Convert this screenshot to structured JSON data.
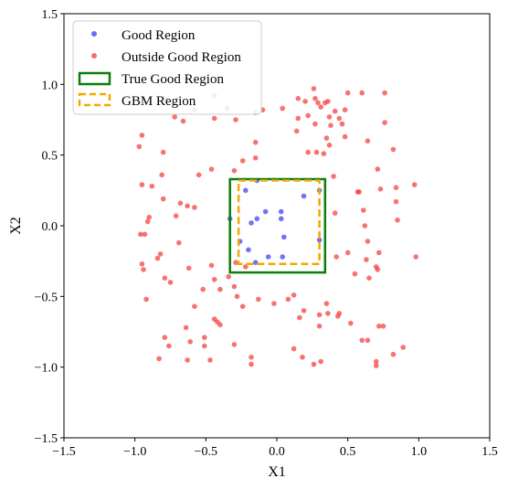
{
  "chart_data": {
    "type": "scatter",
    "xlabel": "X1",
    "ylabel": "X2",
    "xlim": [
      -1.5,
      1.5
    ],
    "ylim": [
      -1.5,
      1.5
    ],
    "xticks": [
      "−1.5",
      "−1.0",
      "−0.5",
      "0.0",
      "0.5",
      "1.0",
      "1.5"
    ],
    "yticks": [
      "−1.5",
      "−1.0",
      "−0.5",
      "0.0",
      "0.5",
      "1.0",
      "1.5"
    ],
    "grid": false,
    "legend_position": "top-left",
    "colors": {
      "good": "#3b3bf5",
      "outside": "#f53b3b",
      "true_region": "#0a7d0a",
      "gbm_region": "#f2a900"
    },
    "series": [
      {
        "name": "Good Region",
        "points": [
          [
            -0.33,
            0.05
          ],
          [
            -0.22,
            0.25
          ],
          [
            -0.14,
            0.32
          ],
          [
            -0.18,
            0.02
          ],
          [
            -0.14,
            0.05
          ],
          [
            -0.08,
            0.1
          ],
          [
            0.03,
            0.1
          ],
          [
            0.03,
            0.05
          ],
          [
            0.19,
            0.21
          ],
          [
            0.3,
            0.25
          ],
          [
            -0.26,
            -0.11
          ],
          [
            -0.2,
            -0.17
          ],
          [
            -0.15,
            -0.26
          ],
          [
            -0.06,
            -0.22
          ],
          [
            0.04,
            -0.22
          ],
          [
            0.05,
            -0.08
          ],
          [
            0.3,
            -0.1
          ]
        ]
      },
      {
        "name": "Outside Good Region",
        "points": [
          [
            -0.97,
            0.56
          ],
          [
            -0.95,
            0.64
          ],
          [
            -0.88,
            0.28
          ],
          [
            -0.9,
            0.06
          ],
          [
            -0.8,
            0.52
          ],
          [
            -0.81,
            0.36
          ],
          [
            -0.8,
            0.19
          ],
          [
            -0.79,
            0.9
          ],
          [
            -0.72,
            0.77
          ],
          [
            -0.66,
            0.74
          ],
          [
            -0.58,
            0.82
          ],
          [
            -0.44,
            0.92
          ],
          [
            -0.29,
            0.75
          ],
          [
            -0.35,
            0.83
          ],
          [
            -0.44,
            0.76
          ],
          [
            -0.1,
            0.82
          ],
          [
            -0.15,
            0.8
          ],
          [
            0.04,
            0.83
          ],
          [
            -0.15,
            0.59
          ],
          [
            -0.15,
            0.48
          ],
          [
            -0.24,
            0.46
          ],
          [
            -0.3,
            0.39
          ],
          [
            -0.46,
            0.4
          ],
          [
            -0.55,
            0.36
          ],
          [
            -0.58,
            0.13
          ],
          [
            -0.63,
            0.14
          ],
          [
            -0.68,
            0.16
          ],
          [
            -0.71,
            0.07
          ],
          [
            -0.69,
            -0.12
          ],
          [
            -0.62,
            -0.3
          ],
          [
            -0.95,
            0.29
          ],
          [
            -0.93,
            -0.06
          ],
          [
            -0.96,
            -0.06
          ],
          [
            -0.95,
            -0.27
          ],
          [
            -0.94,
            -0.31
          ],
          [
            -0.91,
            0.03
          ],
          [
            -0.84,
            -0.23
          ],
          [
            -0.82,
            -0.2
          ],
          [
            -0.79,
            -0.37
          ],
          [
            -0.75,
            -0.4
          ],
          [
            -0.92,
            -0.52
          ],
          [
            -0.58,
            -0.57
          ],
          [
            -0.52,
            -0.45
          ],
          [
            -0.46,
            -0.28
          ],
          [
            -0.44,
            -0.38
          ],
          [
            -0.4,
            -0.45
          ],
          [
            -0.34,
            -0.36
          ],
          [
            -0.3,
            -0.43
          ],
          [
            -0.28,
            -0.5
          ],
          [
            -0.24,
            -0.57
          ],
          [
            -0.29,
            -0.26
          ],
          [
            -0.22,
            -0.29
          ],
          [
            -0.44,
            -0.66
          ],
          [
            -0.4,
            -0.7
          ],
          [
            -0.51,
            -0.79
          ],
          [
            -0.51,
            -0.85
          ],
          [
            -0.64,
            -0.72
          ],
          [
            -0.61,
            -0.82
          ],
          [
            -0.47,
            -0.95
          ],
          [
            -0.3,
            -0.84
          ],
          [
            -0.18,
            -0.93
          ],
          [
            -0.18,
            -0.98
          ],
          [
            -0.79,
            -0.79
          ],
          [
            -0.83,
            -0.94
          ],
          [
            -0.63,
            -0.95
          ],
          [
            -0.76,
            -0.85
          ],
          [
            -0.42,
            -0.68
          ],
          [
            -0.13,
            -0.52
          ],
          [
            -0.02,
            -0.55
          ],
          [
            0.08,
            -0.52
          ],
          [
            0.12,
            -0.49
          ],
          [
            0.16,
            -0.65
          ],
          [
            0.19,
            -0.6
          ],
          [
            0.3,
            -0.63
          ],
          [
            0.36,
            -0.62
          ],
          [
            0.35,
            -0.55
          ],
          [
            0.43,
            -0.64
          ],
          [
            0.3,
            -0.71
          ],
          [
            0.44,
            -0.62
          ],
          [
            0.52,
            -0.69
          ],
          [
            0.6,
            -0.81
          ],
          [
            0.64,
            -0.81
          ],
          [
            0.72,
            -0.71
          ],
          [
            0.75,
            -0.71
          ],
          [
            0.89,
            -0.86
          ],
          [
            0.82,
            -0.91
          ],
          [
            0.7,
            -0.96
          ],
          [
            0.7,
            -0.99
          ],
          [
            0.18,
            -0.93
          ],
          [
            0.26,
            -0.98
          ],
          [
            0.31,
            -0.96
          ],
          [
            0.12,
            -0.87
          ],
          [
            0.4,
            0.35
          ],
          [
            0.41,
            0.09
          ],
          [
            0.42,
            -0.22
          ],
          [
            0.5,
            -0.19
          ],
          [
            0.55,
            -0.34
          ],
          [
            0.57,
            0.24
          ],
          [
            0.58,
            0.24
          ],
          [
            0.61,
            0.11
          ],
          [
            0.62,
            0.0
          ],
          [
            0.64,
            0.6
          ],
          [
            0.64,
            -0.11
          ],
          [
            0.63,
            -0.24
          ],
          [
            0.65,
            -0.37
          ],
          [
            0.7,
            -0.29
          ],
          [
            0.71,
            -0.31
          ],
          [
            0.72,
            -0.19
          ],
          [
            0.73,
            0.26
          ],
          [
            0.71,
            0.4
          ],
          [
            0.76,
            0.73
          ],
          [
            0.82,
            0.54
          ],
          [
            0.84,
            0.27
          ],
          [
            0.84,
            0.17
          ],
          [
            0.85,
            0.04
          ],
          [
            0.97,
            0.29
          ],
          [
            0.98,
            -0.22
          ],
          [
            0.76,
            0.94
          ],
          [
            0.6,
            0.94
          ],
          [
            0.5,
            0.94
          ],
          [
            0.48,
            0.63
          ],
          [
            0.38,
            0.71
          ],
          [
            0.41,
            0.81
          ],
          [
            0.44,
            0.76
          ],
          [
            0.46,
            0.72
          ],
          [
            0.48,
            0.82
          ],
          [
            0.37,
            0.77
          ],
          [
            0.27,
            0.72
          ],
          [
            0.22,
            0.78
          ],
          [
            0.2,
            0.88
          ],
          [
            0.27,
            0.9
          ],
          [
            0.31,
            0.84
          ],
          [
            0.34,
            0.87
          ],
          [
            0.36,
            0.88
          ],
          [
            0.35,
            0.62
          ],
          [
            0.37,
            0.57
          ],
          [
            0.28,
            0.52
          ],
          [
            0.22,
            0.52
          ],
          [
            0.33,
            0.51
          ],
          [
            0.14,
            0.67
          ],
          [
            0.26,
            0.97
          ],
          [
            0.29,
            0.87
          ],
          [
            0.15,
            0.76
          ],
          [
            0.15,
            0.9
          ]
        ]
      }
    ],
    "regions": [
      {
        "name": "True Good Region",
        "x": [
          -0.33,
          0.34
        ],
        "y": [
          -0.33,
          0.33
        ],
        "style": "solid"
      },
      {
        "name": "GBM Region",
        "x": [
          -0.27,
          0.3
        ],
        "y": [
          -0.27,
          0.32
        ],
        "style": "dashed"
      }
    ],
    "legend": [
      "Good Region",
      "Outside Good Region",
      "True Good Region",
      "GBM Region"
    ]
  }
}
